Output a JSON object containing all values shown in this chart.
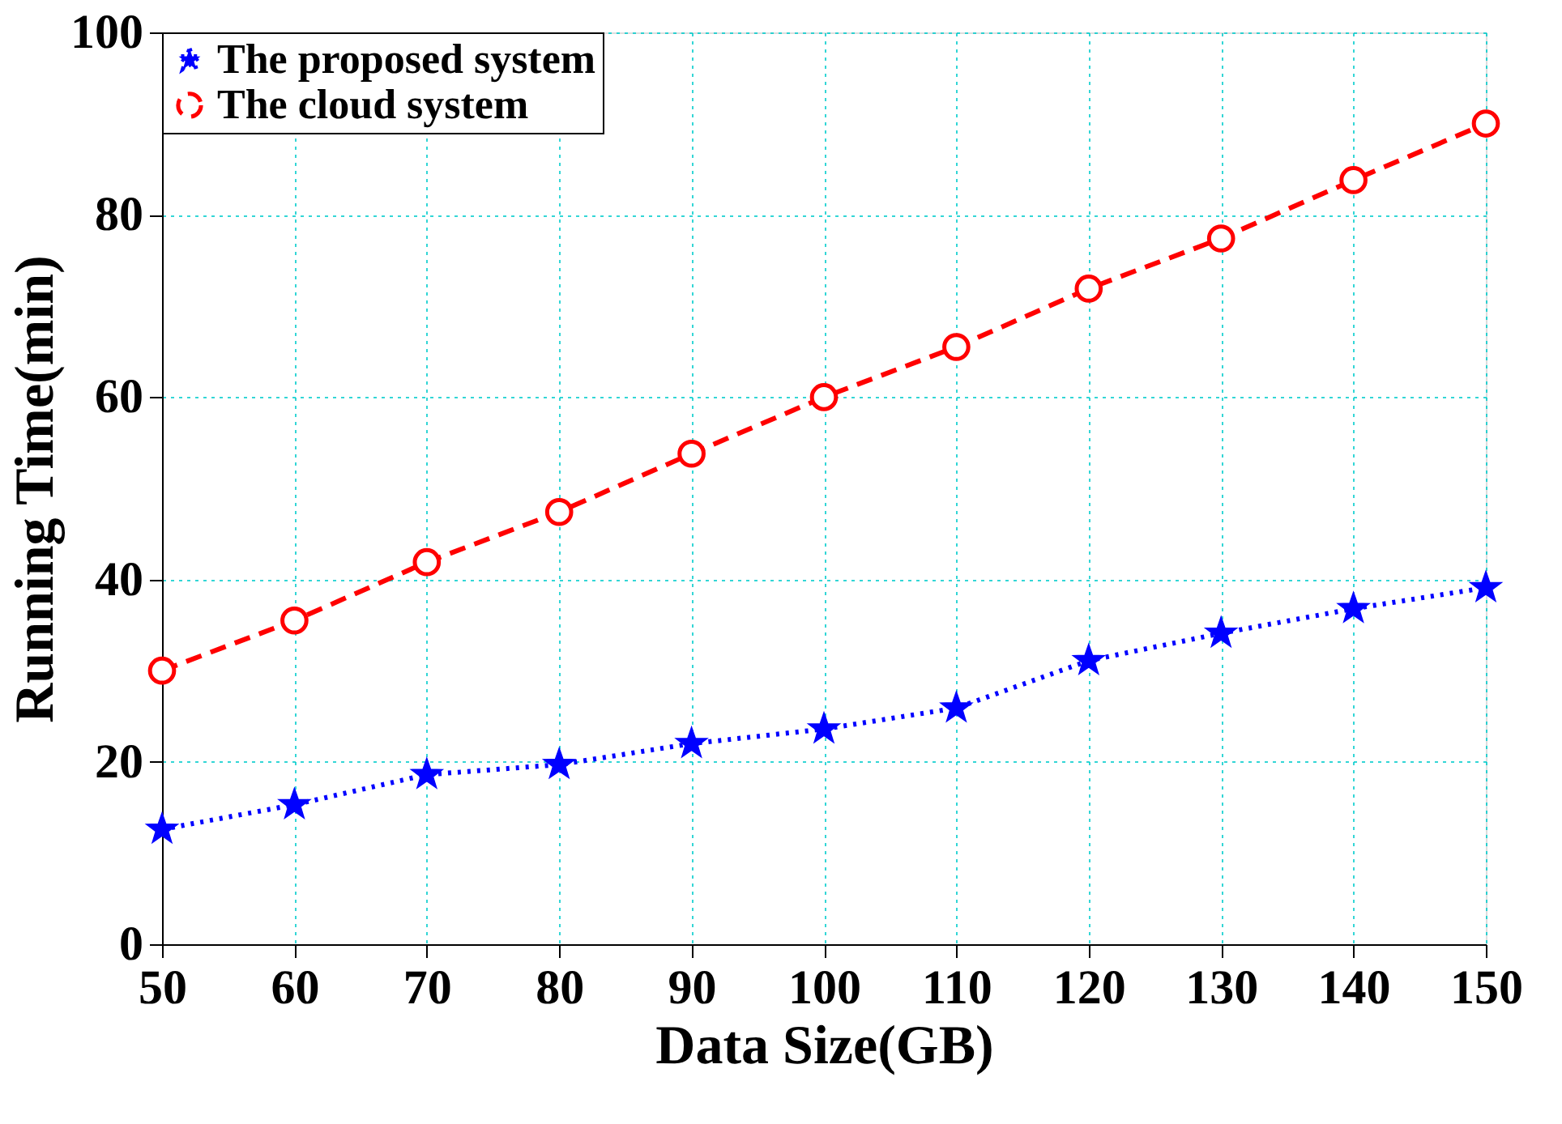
{
  "chart_data": {
    "type": "line",
    "xlabel": "Data Size(GB)",
    "ylabel": "Running Time(min)",
    "x": [
      50,
      60,
      70,
      80,
      90,
      100,
      110,
      120,
      130,
      140,
      150
    ],
    "series": [
      {
        "name": "The proposed system",
        "color": "#0000ff",
        "marker": "star",
        "line_style": "dotted",
        "values": [
          12.6,
          15.3,
          18.6,
          19.7,
          22.0,
          23.6,
          25.9,
          31.1,
          34.1,
          36.8,
          39.1
        ]
      },
      {
        "name": "The cloud system",
        "color": "#ff0000",
        "marker": "circle",
        "line_style": "dashed",
        "values": [
          30.0,
          35.5,
          41.9,
          47.4,
          53.8,
          60.0,
          65.5,
          71.9,
          77.4,
          83.8,
          90.0
        ]
      }
    ],
    "xlim": [
      50,
      150
    ],
    "xticks": [
      50,
      60,
      70,
      80,
      90,
      100,
      110,
      120,
      130,
      140,
      150
    ],
    "ylim": [
      0,
      100
    ],
    "yticks": [
      0,
      20,
      40,
      60,
      80,
      100
    ],
    "grid": true,
    "legend": "top left"
  }
}
